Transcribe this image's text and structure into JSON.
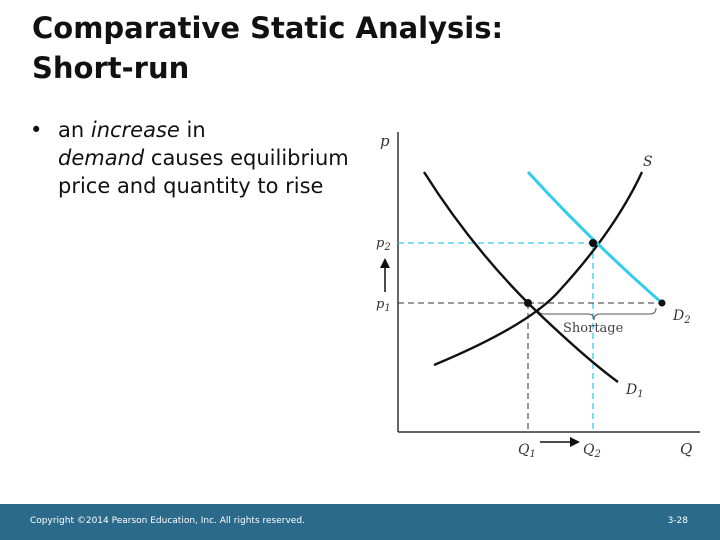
{
  "slide": {
    "title_line1": "Comparative Static Analysis:",
    "title_line2": "Short-run",
    "bullet": {
      "marker": "•",
      "prefix": "an ",
      "emph1": "increase",
      "mid": " in",
      "emph2": "demand",
      "suffix": " causes equilibrium price and quantity to rise"
    }
  },
  "diagram": {
    "y_axis_label": "p",
    "x_axis_label": "Q",
    "supply_label": "S",
    "demand1_label": "D",
    "demand1_sub": "1",
    "demand2_label": "D",
    "demand2_sub": "2",
    "p1_label": "p",
    "p1_sub": "1",
    "p2_label": "p",
    "p2_sub": "2",
    "q1_label": "Q",
    "q1_sub": "1",
    "q2_label": "Q",
    "q2_sub": "2",
    "shortage_label": "Shortage",
    "colors": {
      "new_demand": "#33ccee",
      "curves": "#111111",
      "guides": "#33ccee"
    }
  },
  "footer": {
    "copyright": "Copyright ©2014 Pearson Education, Inc. All rights reserved.",
    "page": "3-28"
  }
}
